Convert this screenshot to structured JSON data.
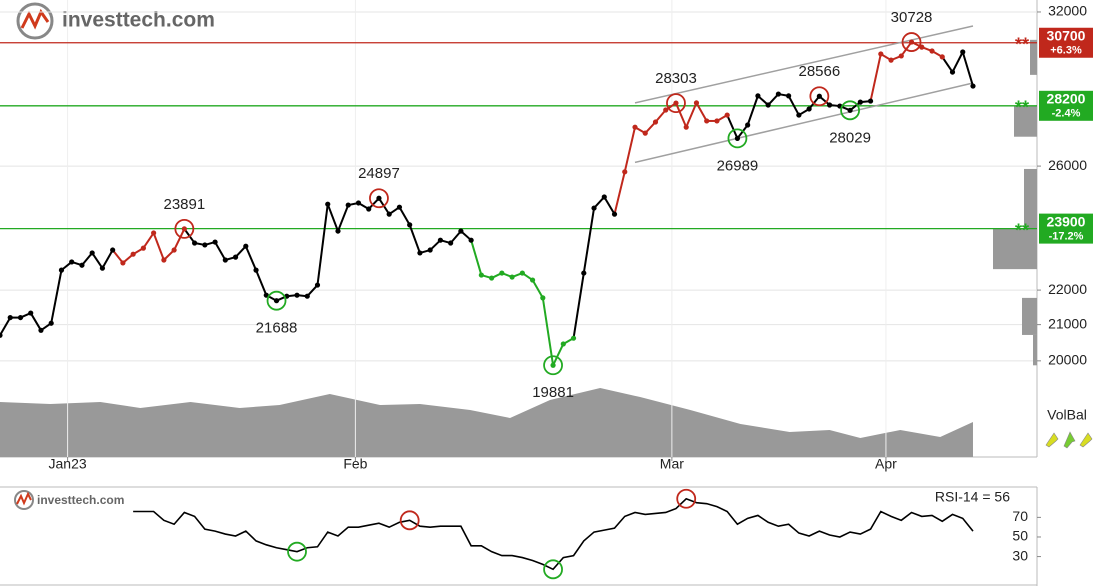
{
  "chart_data": {
    "type": "line",
    "logo": "investtech.com",
    "log_scale": true,
    "grid": true,
    "xlim": [
      0,
      101.25
    ],
    "xticks": [
      {
        "value": 6.6,
        "label": "Jan23"
      },
      {
        "value": 34.7,
        "label": "Feb"
      },
      {
        "value": 65.6,
        "label": "Mar"
      },
      {
        "value": 86.5,
        "label": "Apr"
      }
    ],
    "ylim": [
      17570,
      32520
    ],
    "yticks": [
      32000,
      26000,
      22000,
      21000,
      20000
    ],
    "x": [
      0,
      1,
      2,
      3,
      4,
      5,
      6,
      7,
      8,
      9,
      10,
      11,
      12,
      13,
      14,
      15,
      16,
      17,
      18,
      19,
      20,
      21,
      22,
      23,
      24,
      25,
      26,
      27,
      28,
      29,
      30,
      31,
      32,
      33,
      34,
      35,
      36,
      37,
      38,
      39,
      40,
      41,
      42,
      43,
      44,
      45,
      46,
      47,
      48,
      49,
      50,
      51,
      52,
      53,
      54,
      55,
      56,
      57,
      58,
      59,
      60,
      61,
      62,
      63,
      64,
      65,
      66,
      67,
      68,
      69,
      70,
      71,
      72,
      73,
      74,
      75,
      76,
      77,
      78,
      79,
      80,
      81,
      82,
      83,
      84,
      85,
      86,
      87,
      88,
      89,
      90,
      91,
      92,
      93,
      94,
      95
    ],
    "series": [
      {
        "color": "#000000",
        "values": [
          20700,
          21200,
          21200,
          21330,
          20840,
          21040,
          22600,
          22850,
          22750,
          23130,
          22660,
          23220,
          22820,
          23090,
          23280,
          23760,
          22910,
          23220,
          23891,
          23440,
          23380,
          23470,
          22910,
          23000,
          23340,
          22600,
          21850,
          21688,
          21820,
          21850,
          21820,
          22150,
          24700,
          23820,
          24670,
          24740,
          24540,
          24897,
          24370,
          24600,
          24020,
          23130,
          23220,
          23530,
          23440,
          23820,
          23530,
          22450,
          22360,
          22510,
          22390,
          22510,
          22300,
          21770,
          19881,
          20460,
          20620,
          22510,
          24570,
          24940,
          24370,
          25800,
          27400,
          27180,
          27590,
          28040,
          28303,
          27400,
          28310,
          27630,
          27630,
          27850,
          26989,
          27480,
          28580,
          28230,
          28650,
          28580,
          27850,
          28080,
          28566,
          28230,
          28190,
          28029,
          28340,
          28380,
          30240,
          29990,
          30160,
          30728,
          30520,
          30360,
          30120,
          29510,
          30320,
          28960
        ],
        "point_colors": [
          "#000000",
          "#000000",
          "#000000",
          "#000000",
          "#000000",
          "#000000",
          "#000000",
          "#000000",
          "#000000",
          "#000000",
          "#000000",
          "#000000",
          "#c0281c",
          "#c0281c",
          "#c0281c",
          "#c0281c",
          "#c0281c",
          "#c0281c",
          "#c0281c",
          "#000000",
          "#000000",
          "#000000",
          "#000000",
          "#000000",
          "#000000",
          "#000000",
          "#000000",
          "#000000",
          "#000000",
          "#000000",
          "#000000",
          "#000000",
          "#000000",
          "#000000",
          "#000000",
          "#000000",
          "#000000",
          "#000000",
          "#000000",
          "#000000",
          "#000000",
          "#000000",
          "#000000",
          "#000000",
          "#000000",
          "#000000",
          "#000000",
          "#22aa22",
          "#22aa22",
          "#22aa22",
          "#22aa22",
          "#22aa22",
          "#22aa22",
          "#22aa22",
          "#22aa22",
          "#22aa22",
          "#22aa22",
          "#000000",
          "#000000",
          "#000000",
          "#000000",
          "#c0281c",
          "#c0281c",
          "#c0281c",
          "#c0281c",
          "#c0281c",
          "#c0281c",
          "#c0281c",
          "#c0281c",
          "#c0281c",
          "#c0281c",
          "#c0281c",
          "#000000",
          "#000000",
          "#000000",
          "#000000",
          "#000000",
          "#000000",
          "#000000",
          "#000000",
          "#000000",
          "#000000",
          "#000000",
          "#000000",
          "#000000",
          "#000000",
          "#c0281c",
          "#c0281c",
          "#c0281c",
          "#c0281c",
          "#c0281c",
          "#c0281c",
          "#c0281c",
          "#000000",
          "#000000",
          "#000000"
        ]
      }
    ],
    "annotations": [
      {
        "point": 18,
        "type": "high"
      },
      {
        "point": 27,
        "type": "low"
      },
      {
        "point": 37,
        "type": "high"
      },
      {
        "point": 54,
        "type": "low"
      },
      {
        "point": 66,
        "type": "high"
      },
      {
        "point": 72,
        "type": "low"
      },
      {
        "point": 80,
        "type": "high"
      },
      {
        "point": 83,
        "type": "low"
      },
      {
        "point": 89,
        "type": "high"
      }
    ],
    "levels": [
      {
        "value": 30700,
        "label": "+6.3%",
        "marker": "**",
        "color": "#c0281c"
      },
      {
        "value": 28200,
        "label": "-2.4%",
        "marker": "**",
        "color": "#22aa22"
      },
      {
        "value": 23900,
        "label": "-17.2%",
        "marker": "**",
        "color": "#22aa22"
      }
    ],
    "channel": {
      "color": "#a0a0a0",
      "lines": [
        {
          "x": [
            62,
            95
          ],
          "values": [
            28310,
            31400
          ]
        },
        {
          "x": [
            62,
            95
          ],
          "values": [
            26130,
            29080
          ]
        }
      ]
    },
    "volume": {
      "color": "#999999",
      "ylim": [
        0,
        80
      ],
      "x": [
        0,
        4.9,
        9.8,
        13.7,
        18.6,
        23.4,
        27.3,
        32.2,
        37.1,
        41,
        45.9,
        49.8,
        53.7,
        58.6,
        62.5,
        67.4,
        72.3,
        77.1,
        81,
        84,
        87.9,
        91.8,
        95
      ],
      "values": [
        55,
        53,
        55,
        49,
        55,
        49,
        52,
        63,
        52,
        53,
        47,
        39,
        57,
        69,
        60,
        47,
        33,
        25,
        27,
        19,
        27,
        20,
        35
      ]
    },
    "profile": {
      "color": "#999999",
      "bars": [
        {
          "from": 29400,
          "to": 30820,
          "value": 7
        },
        {
          "from": 27050,
          "to": 28180,
          "value": 23
        },
        {
          "from": 23900,
          "to": 25900,
          "value": 13
        },
        {
          "from": 22630,
          "to": 23900,
          "value": 44
        },
        {
          "from": 20710,
          "to": 21770,
          "value": 15
        },
        {
          "from": 19880,
          "to": 20710,
          "value": 4
        }
      ]
    },
    "indicator": "VolBal",
    "rsi": {
      "label": "RSI-14 = 56",
      "color": "#000000",
      "ylim": [
        1,
        101
      ],
      "yticks": [
        70,
        50,
        30
      ],
      "x": [
        13,
        14,
        15,
        16,
        17,
        18,
        19,
        20,
        21,
        22,
        23,
        24,
        25,
        26,
        27,
        28,
        29,
        30,
        31,
        32,
        33,
        34,
        35,
        36,
        37,
        38,
        39,
        40,
        41,
        42,
        43,
        44,
        45,
        46,
        47,
        48,
        49,
        50,
        51,
        52,
        53,
        54,
        55,
        56,
        57,
        58,
        59,
        60,
        61,
        62,
        63,
        64,
        65,
        66,
        67,
        68,
        69,
        70,
        71,
        72,
        73,
        74,
        75,
        76,
        77,
        78,
        79,
        80,
        81,
        82,
        83,
        84,
        85,
        86,
        87,
        88,
        89,
        90,
        91,
        92,
        93,
        94,
        95
      ],
      "values": [
        76,
        76,
        76,
        67,
        63,
        75,
        71,
        58,
        56,
        53,
        51,
        56,
        46,
        42,
        39,
        37,
        35,
        39,
        40,
        55,
        51,
        60,
        60,
        62,
        64,
        60,
        65,
        67,
        61,
        60,
        61,
        61,
        61,
        41,
        41,
        35,
        31,
        31,
        29,
        26,
        22,
        17,
        29,
        31,
        46,
        55,
        57,
        59,
        71,
        75,
        73,
        74,
        75,
        79,
        89,
        85,
        84,
        81,
        76,
        63,
        69,
        72,
        65,
        61,
        63,
        54,
        51,
        56,
        52,
        50,
        55,
        53,
        58,
        76,
        71,
        67,
        75,
        71,
        72,
        66,
        73,
        69,
        56
      ],
      "annotations": [
        {
          "point": 16,
          "type": "low"
        },
        {
          "point": 27,
          "type": "high"
        },
        {
          "point": 41,
          "type": "low"
        },
        {
          "point": 54,
          "type": "high"
        }
      ]
    }
  }
}
